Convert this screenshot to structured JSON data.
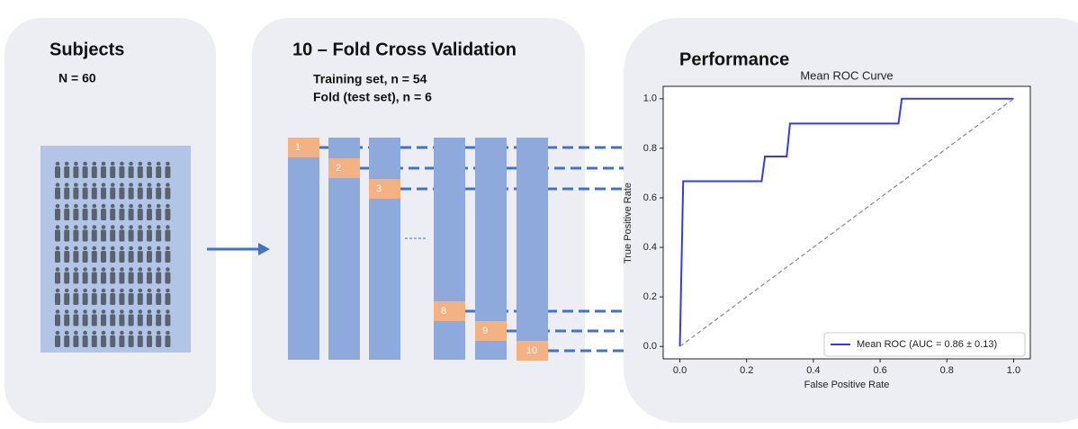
{
  "subjects": {
    "title": "Subjects",
    "count": "N = 60"
  },
  "cross_validation": {
    "title": "10 – Fold Cross Validation",
    "lines": [
      "Training set, n = 54",
      "Fold (test set), n = 6"
    ],
    "folds": [
      "1",
      "2",
      "3",
      "8",
      "9",
      "10"
    ]
  },
  "performance": {
    "title": "Performance"
  },
  "chart_data": {
    "type": "line",
    "title": "Mean ROC Curve",
    "x_label": "False Positive Rate",
    "y_label": "True Positive Rate",
    "xlim": [
      -0.05,
      1.05
    ],
    "ylim": [
      -0.05,
      1.05
    ],
    "xticks": [
      {
        "value": 0,
        "label": "0.0"
      },
      {
        "value": 0.2,
        "label": "0.2"
      },
      {
        "value": 0.4,
        "label": "0.4"
      },
      {
        "value": 0.6,
        "label": "0.6"
      },
      {
        "value": 0.8,
        "label": "0.8"
      },
      {
        "value": 1,
        "label": "1.0"
      }
    ],
    "yticks": [
      {
        "value": 0,
        "label": "0.0"
      },
      {
        "value": 0.2,
        "label": "0.2"
      },
      {
        "value": 0.4,
        "label": "0.4"
      },
      {
        "value": 0.6,
        "label": "0.6"
      },
      {
        "value": 0.8,
        "label": "0.8"
      },
      {
        "value": 1,
        "label": "1.0"
      }
    ],
    "legend": "lower right",
    "series": [
      {
        "name": "Mean ROC (AUC = 0.86 ± 0.13)",
        "color": "#3a3ae0",
        "x": [
          0,
          0.01,
          0.245,
          0.255,
          0.32,
          0.33,
          0.655,
          0.665,
          1
        ],
        "values": [
          0,
          0.667,
          0.667,
          0.767,
          0.767,
          0.9,
          0.9,
          1,
          1
        ]
      },
      {
        "color": "#888888",
        "dashed": true,
        "x": [
          0,
          1
        ],
        "values": [
          0,
          1
        ]
      }
    ]
  }
}
